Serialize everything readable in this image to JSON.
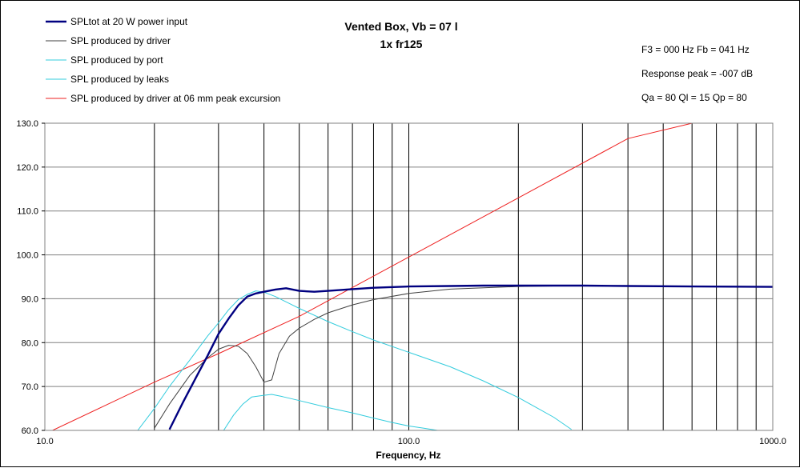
{
  "chart_data": {
    "type": "line",
    "title": "Vented Box, Vb = 07 l",
    "subtitle": "1x fr125",
    "xlabel": "Frequency, Hz",
    "ylabel": "",
    "xscale": "log",
    "xlim": [
      10,
      1000
    ],
    "ylim": [
      60,
      130
    ],
    "grid": true,
    "legend_position": "top-left",
    "x_ticks": [
      "10.0",
      "100.0",
      "1000.0"
    ],
    "y_ticks": [
      "60.0",
      "70.0",
      "80.0",
      "90.0",
      "100.0",
      "110.0",
      "120.0",
      "130.0"
    ],
    "info_lines": [
      "F3 = 000 Hz  Fb = 041 Hz",
      "Response peak = -007 dB",
      "Qa = 80  Ql = 15  Qp = 80"
    ],
    "series": [
      {
        "name": "SPLtot at 20 W power input",
        "color": "#000080",
        "width": 2.4,
        "x": [
          22,
          24,
          26,
          28,
          30,
          32,
          34,
          36,
          38,
          40,
          43,
          46,
          50,
          55,
          60,
          70,
          80,
          100,
          130,
          160,
          200,
          300,
          400,
          600,
          1000
        ],
        "y": [
          60.2,
          66.5,
          72,
          77,
          82,
          85.5,
          88.5,
          90.5,
          91.2,
          91.6,
          92.1,
          92.4,
          91.8,
          91.6,
          91.8,
          92.2,
          92.5,
          92.8,
          92.9,
          93,
          93,
          93,
          92.9,
          92.8,
          92.7
        ]
      },
      {
        "name": "SPL produced by driver",
        "color": "#404040",
        "width": 1,
        "x": [
          20,
          22,
          25,
          28,
          30,
          32,
          34,
          36,
          38,
          40,
          42,
          44,
          47,
          50,
          55,
          60,
          70,
          80,
          100,
          130,
          200,
          300,
          500,
          1000
        ],
        "y": [
          60.5,
          66,
          72.5,
          76.5,
          78.5,
          79.4,
          79.2,
          77.5,
          74.5,
          71,
          71.5,
          77.5,
          81.5,
          83.3,
          85.3,
          86.8,
          88.6,
          89.8,
          91.2,
          92.2,
          92.8,
          93,
          92.9,
          92.8
        ]
      },
      {
        "name": "SPL produced by port",
        "color": "#33ccdd",
        "width": 1,
        "x": [
          18,
          20,
          22,
          25,
          28,
          30,
          32,
          34,
          36,
          38,
          40,
          43,
          46,
          50,
          60,
          70,
          80,
          100,
          130,
          160,
          200,
          250,
          280
        ],
        "y": [
          60,
          65,
          70,
          76,
          81.5,
          84.5,
          87.5,
          89.8,
          91,
          91.8,
          91.5,
          90.5,
          89.3,
          87.8,
          84.8,
          82.5,
          80.6,
          77.8,
          74.5,
          71.3,
          67.5,
          63,
          60.2
        ]
      },
      {
        "name": "SPL produced by leaks",
        "color": "#33ccdd",
        "width": 1,
        "x": [
          31,
          33,
          35,
          37,
          40,
          42,
          45,
          50,
          60,
          70,
          80,
          90,
          100,
          110,
          120
        ],
        "y": [
          60,
          63.5,
          66,
          67.6,
          68,
          68.2,
          67.7,
          66.8,
          65.2,
          64,
          62.8,
          61.8,
          61,
          60.5,
          60
        ]
      },
      {
        "name": "SPL produced by driver at 06 mm peak excursion",
        "color": "#ee2020",
        "width": 1,
        "x": [
          10.5,
          20,
          30,
          50,
          100,
          200,
          400,
          600
        ],
        "y": [
          60,
          71,
          77.5,
          86,
          99.5,
          113,
          126.5,
          130
        ]
      }
    ]
  }
}
